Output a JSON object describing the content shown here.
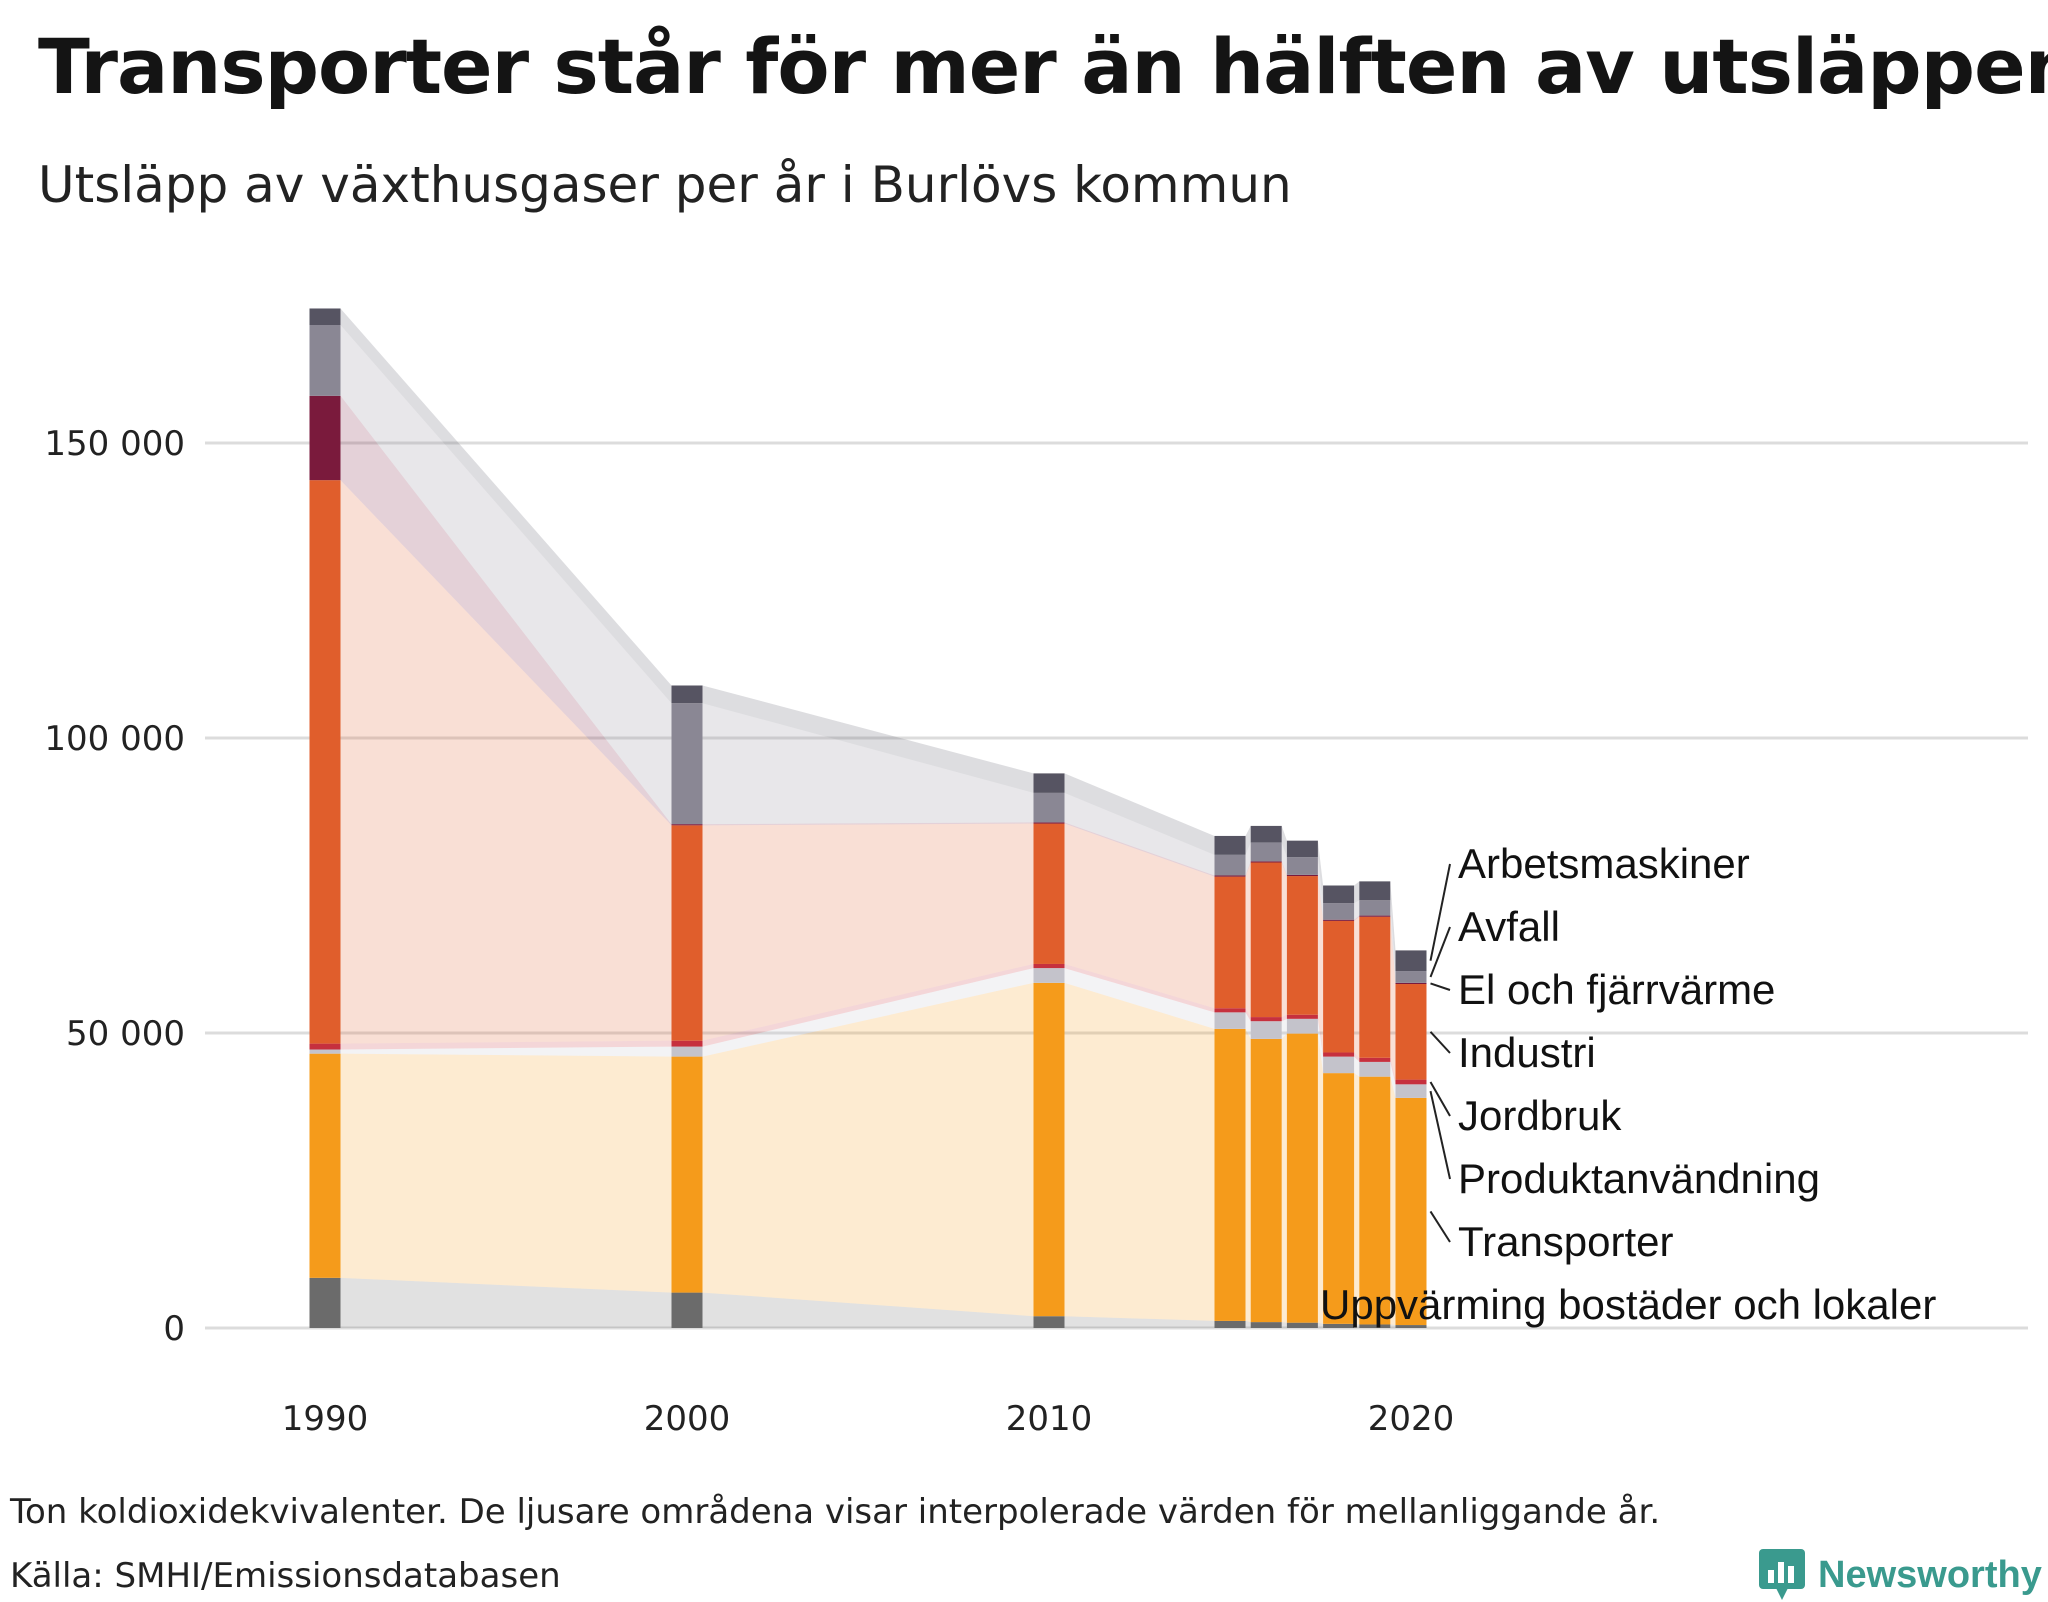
{
  "header": {
    "title": "Transporter står för mer än hälften av utsläppen",
    "subtitle": "Utsläpp av växthusgaser per år i Burlövs kommun"
  },
  "footer": {
    "note": "Ton koldioxidekvivalenter. De ljusare områdena visar interpolerade värden för mellanliggande år.",
    "source": "Källa: SMHI/Emissionsdatabasen",
    "brand": "Newsworthy"
  },
  "colors": {
    "uppvarmning": "#6b6b6b",
    "transporter": "#f59b1b",
    "produktanvandning": "#c4c3cb",
    "jordbruk": "#c6303e",
    "industri": "#e05e2c",
    "el_fjarrvarme": "#7a1a3c",
    "avfall": "#8a8794",
    "arbetsmaskiner": "#565462",
    "gridline": "#dcdcdc",
    "brand": "#3a9a8e"
  },
  "chart_data": {
    "type": "bar",
    "stacked": true,
    "title": "Transporter står för mer än hälften av utsläppen",
    "subtitle": "Utsläpp av växthusgaser per år i Burlövs kommun",
    "xlabel": "",
    "ylabel": "Ton koldioxidekvivalenter",
    "x": [
      1990,
      2000,
      2010,
      2015,
      2016,
      2017,
      2018,
      2019,
      2020
    ],
    "x_ticks": [
      1990,
      2000,
      2010,
      2020
    ],
    "y_ticks": [
      0,
      50000,
      100000,
      150000
    ],
    "y_tick_labels": [
      "0",
      "50 000",
      "100 000",
      "150 000"
    ],
    "ylim": [
      0,
      172000
    ],
    "interpolated_areas": true,
    "series": [
      {
        "name": "Uppvärming bostäder och lokaler",
        "key": "uppvarmning",
        "values": [
          8500,
          6000,
          2000,
          1200,
          1000,
          900,
          700,
          600,
          500
        ]
      },
      {
        "name": "Transporter",
        "key": "transporter",
        "values": [
          38000,
          40000,
          56500,
          49500,
          48000,
          49000,
          42500,
          42000,
          38500
        ]
      },
      {
        "name": "Produktanvändning",
        "key": "produktanvandning",
        "values": [
          700,
          1700,
          2500,
          2800,
          3000,
          2500,
          2800,
          2500,
          2300
        ]
      },
      {
        "name": "Jordbruk",
        "key": "jordbruk",
        "values": [
          1000,
          1000,
          700,
          700,
          700,
          700,
          700,
          700,
          800
        ]
      },
      {
        "name": "Industri",
        "key": "industri",
        "values": [
          95500,
          36500,
          23800,
          22300,
          26200,
          23500,
          22300,
          23900,
          16200
        ]
      },
      {
        "name": "El och fjärrvärme",
        "key": "el_fjarrvarme",
        "values": [
          14300,
          200,
          200,
          200,
          200,
          200,
          200,
          200,
          200
        ]
      },
      {
        "name": "Avfall",
        "key": "avfall",
        "values": [
          12000,
          20500,
          5000,
          3500,
          3200,
          3000,
          2800,
          2600,
          2000
        ]
      },
      {
        "name": "Arbetsmaskiner",
        "key": "arbetsmaskiner",
        "values": [
          2800,
          3000,
          3300,
          3200,
          2800,
          2800,
          3000,
          3200,
          3500
        ]
      }
    ],
    "legend": {
      "placement": "right",
      "labels_top_to_bottom": [
        "Arbetsmaskiner",
        "Avfall",
        "El och fjärrvärme",
        "Industri",
        "Jordbruk",
        "Produktanvändning",
        "Transporter",
        "Uppvärming bostäder och lokaler"
      ]
    }
  }
}
